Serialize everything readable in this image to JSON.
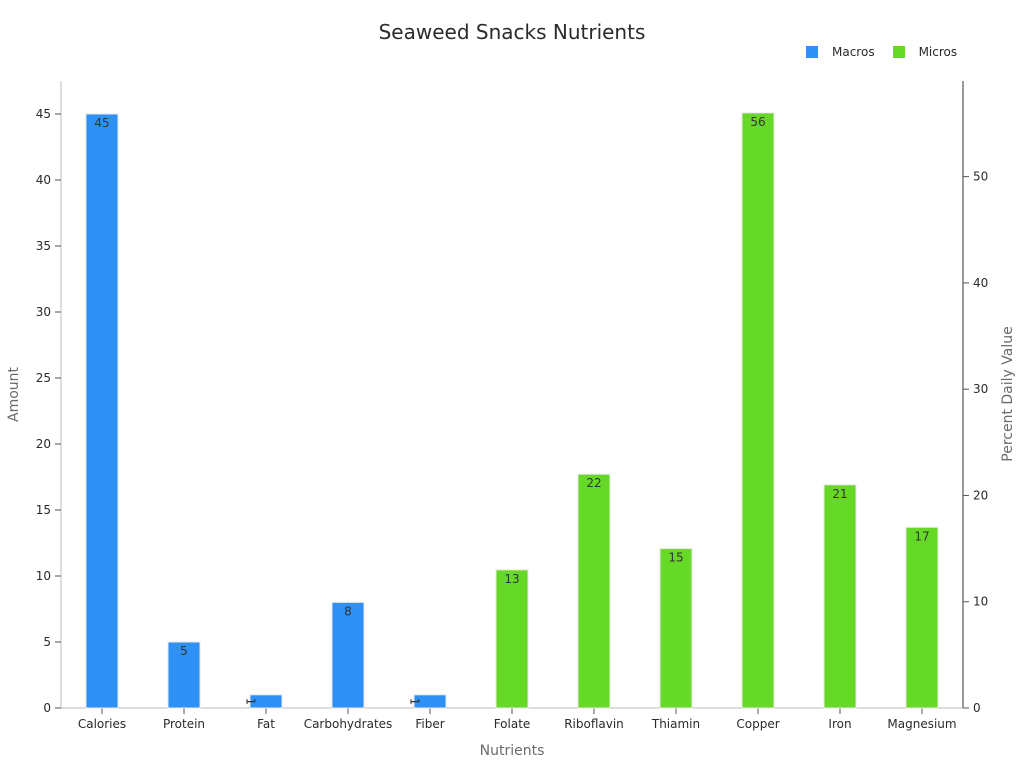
{
  "chart_data": {
    "type": "bar",
    "title": "Seaweed Snacks Nutrients",
    "categories": [
      "Calories",
      "Protein",
      "Fat",
      "Carbohydrates",
      "Fiber",
      "Folate",
      "Riboflavin",
      "Thiamin",
      "Copper",
      "Iron",
      "Magnesium"
    ],
    "series": [
      {
        "name": "Macros",
        "axis": "left",
        "color": "#2f91f5",
        "values": [
          45,
          5,
          1,
          8,
          1,
          null,
          null,
          null,
          null,
          null,
          null
        ]
      },
      {
        "name": "Micros",
        "axis": "right",
        "color": "#66d926",
        "values": [
          null,
          null,
          null,
          null,
          null,
          13,
          22,
          15,
          56,
          21,
          17
        ]
      }
    ],
    "xlabel": "Nutrients",
    "ylabel": "Amount",
    "y2label": "Percent Daily Value",
    "ylim": [
      0,
      47.5
    ],
    "y2lim": [
      0,
      59
    ],
    "yticks": [
      0,
      5,
      10,
      15,
      20,
      25,
      30,
      35,
      40,
      45
    ],
    "y2ticks": [
      0,
      10,
      20,
      30,
      40,
      50
    ],
    "legend_position": "top-right",
    "grid": false
  }
}
